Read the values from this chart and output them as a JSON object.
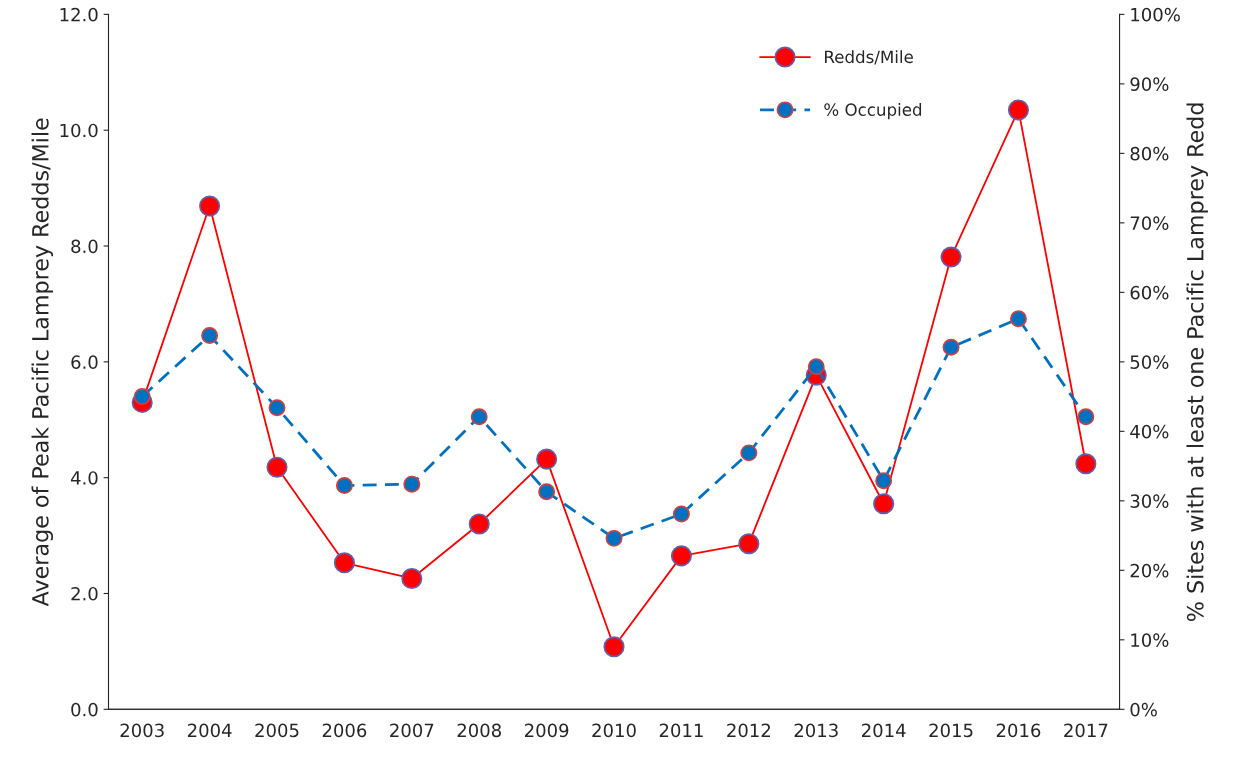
{
  "chart_data": {
    "type": "line",
    "ylabel": "Average of Peak Pacific Lamprey Redds/Mile",
    "y2label": "% Sites with at least one Pacific Lamprey Redd",
    "categories": [
      "2003",
      "2004",
      "2005",
      "2006",
      "2007",
      "2008",
      "2009",
      "2010",
      "2011",
      "2012",
      "2013",
      "2014",
      "2015",
      "2016",
      "2017"
    ],
    "series": [
      {
        "name": "Redds/Mile",
        "color": "#ff0000",
        "line_style": "solid",
        "values": [
          5.3,
          8.69,
          4.18,
          2.53,
          2.26,
          3.2,
          4.32,
          1.08,
          2.65,
          2.86,
          5.77,
          3.55,
          7.81,
          10.35,
          4.24
        ]
      },
      {
        "name": "% Occupied",
        "color": "#0070c0",
        "line_style": "dashed",
        "axis": "y2",
        "values": [
          45.0,
          53.8,
          43.4,
          32.2,
          32.4,
          42.1,
          31.3,
          24.6,
          28.1,
          36.9,
          49.3,
          32.9,
          52.1,
          56.2,
          42.1
        ]
      }
    ],
    "ylim": [
      0,
      12
    ],
    "yticks": [
      {
        "value": 0,
        "label": "0.0"
      },
      {
        "value": 2,
        "label": "2.0"
      },
      {
        "value": 4,
        "label": "4.0"
      },
      {
        "value": 6,
        "label": "6.0"
      },
      {
        "value": 8,
        "label": "8.0"
      },
      {
        "value": 10,
        "label": "10.0"
      },
      {
        "value": 12,
        "label": "12.0"
      }
    ],
    "y2lim": [
      0,
      100
    ],
    "y2ticks": [
      {
        "value": 0,
        "label": "0%"
      },
      {
        "value": 10,
        "label": "10%"
      },
      {
        "value": 20,
        "label": "20%"
      },
      {
        "value": 30,
        "label": "30%"
      },
      {
        "value": 40,
        "label": "40%"
      },
      {
        "value": 50,
        "label": "50%"
      },
      {
        "value": 60,
        "label": "60%"
      },
      {
        "value": 70,
        "label": "70%"
      },
      {
        "value": 80,
        "label": "80%"
      },
      {
        "value": 90,
        "label": "90%"
      },
      {
        "value": 100,
        "label": "100%"
      }
    ],
    "marker": "circle",
    "grid": false,
    "legend": "top right"
  }
}
